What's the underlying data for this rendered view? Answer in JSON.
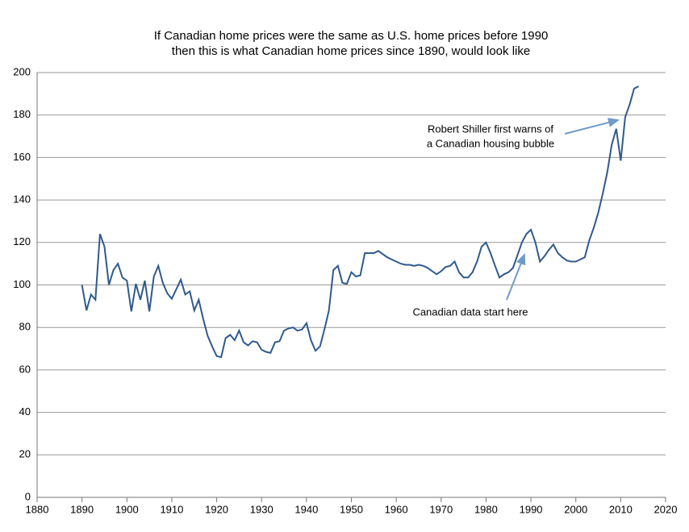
{
  "chart_data": {
    "type": "line",
    "title": [
      "If Canadian home prices were the same as U.S. home prices before 1990",
      "then this is what Canadian home prices since 1890, would look like"
    ],
    "x": [
      1890,
      1891,
      1892,
      1893,
      1894,
      1895,
      1896,
      1897,
      1898,
      1899,
      1900,
      1901,
      1902,
      1903,
      1904,
      1905,
      1906,
      1907,
      1908,
      1909,
      1910,
      1911,
      1912,
      1913,
      1914,
      1915,
      1916,
      1917,
      1918,
      1919,
      1920,
      1921,
      1922,
      1923,
      1924,
      1925,
      1926,
      1927,
      1928,
      1929,
      1930,
      1931,
      1932,
      1933,
      1934,
      1935,
      1936,
      1937,
      1938,
      1939,
      1940,
      1941,
      1942,
      1943,
      1944,
      1945,
      1946,
      1947,
      1948,
      1949,
      1950,
      1951,
      1952,
      1953,
      1954,
      1955,
      1956,
      1957,
      1958,
      1959,
      1960,
      1961,
      1962,
      1963,
      1964,
      1965,
      1966,
      1967,
      1968,
      1969,
      1970,
      1971,
      1972,
      1973,
      1974,
      1975,
      1976,
      1977,
      1978,
      1979,
      1980,
      1981,
      1982,
      1983,
      1984,
      1985,
      1986,
      1987,
      1988,
      1989,
      1990,
      1991,
      1992,
      1993,
      1994,
      1995,
      1996,
      1997,
      1998,
      1999,
      2000,
      2001,
      2002,
      2003,
      2004,
      2005,
      2006,
      2007,
      2008,
      2009,
      2010,
      2011,
      2012,
      2013,
      2014
    ],
    "values": [
      100,
      88,
      95.5,
      93,
      124,
      118,
      100,
      107,
      110,
      103.5,
      102,
      87.5,
      100.5,
      93,
      102,
      87.5,
      104,
      109,
      101,
      96,
      93.5,
      98,
      102.5,
      95.5,
      97,
      88,
      93,
      84,
      76,
      71,
      66.5,
      66,
      75,
      76.5,
      74,
      78.5,
      73,
      71.5,
      73.5,
      73,
      69.5,
      68.5,
      68,
      73,
      73.5,
      78.5,
      79.5,
      80,
      78.5,
      79,
      82,
      74,
      69,
      71,
      79,
      88,
      107,
      109,
      101,
      100.5,
      106,
      104,
      104.5,
      115,
      115,
      115,
      116,
      114.5,
      113,
      112,
      111,
      110,
      109.5,
      109.5,
      109,
      109.5,
      109,
      108,
      106.5,
      105,
      106.5,
      108.5,
      109,
      111,
      106,
      103.5,
      103.5,
      106,
      111,
      118,
      120,
      115,
      109,
      103.5,
      105,
      106,
      108,
      114,
      120,
      124,
      126,
      120,
      111,
      113.5,
      116.5,
      119,
      115,
      113,
      111.5,
      111,
      111,
      112,
      113,
      121,
      127,
      134,
      143,
      153,
      166,
      173.5,
      158.5,
      179,
      185,
      192.5,
      193.5
    ],
    "color": "#2f5a8c",
    "xlim": [
      1880,
      2020
    ],
    "xticks": [
      1880,
      1890,
      1900,
      1910,
      1920,
      1930,
      1940,
      1950,
      1960,
      1970,
      1980,
      1990,
      2000,
      2010,
      2020
    ],
    "ylim": [
      0,
      200
    ],
    "yticks": [
      0,
      20,
      40,
      60,
      80,
      100,
      120,
      140,
      160,
      180,
      200
    ],
    "grid": true,
    "annotations": [
      {
        "text": [
          "Robert Shiller first warns of",
          "a Canadian housing bubble"
        ]
      },
      {
        "text": [
          "Canadian data start here"
        ]
      }
    ]
  }
}
